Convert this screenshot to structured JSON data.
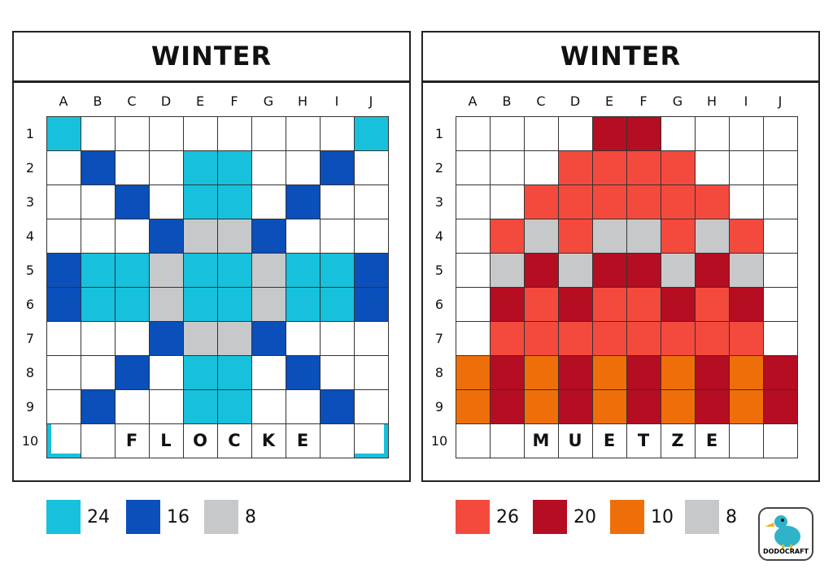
{
  "palette": {
    "W": "#ffffff",
    "L": "#17c1dc",
    "D": "#0a4fba",
    "G": "#c6c8ca",
    "R": "#f44a3e",
    "M": "#b50d22",
    "O": "#ee6f0a"
  },
  "panels": [
    {
      "title": "WINTER",
      "columns": [
        "A",
        "B",
        "C",
        "D",
        "E",
        "F",
        "G",
        "H",
        "I",
        "J"
      ],
      "rows": [
        "1",
        "2",
        "3",
        "4",
        "5",
        "6",
        "7",
        "8",
        "9",
        "10"
      ],
      "grid": [
        "LWWWWWWWWL",
        "WDWWLLWWDW",
        "WWDWLLWDWW",
        "WWWDGGDWWW",
        "DLLGLLGLLD",
        "DLLGLLGLLD",
        "WWWDGGDWWW",
        "WWDWLLWDWW",
        "WDWWLLWWDW",
        "lWWWWWWWWr"
      ],
      "word": [
        null,
        null,
        "F",
        "L",
        "O",
        "C",
        "K",
        "E",
        null,
        null
      ],
      "legend": [
        {
          "key": "L",
          "count": 24
        },
        {
          "key": "D",
          "count": 16
        },
        {
          "key": "G",
          "count": 8
        }
      ]
    },
    {
      "title": "WINTER",
      "columns": [
        "A",
        "B",
        "C",
        "D",
        "E",
        "F",
        "G",
        "H",
        "I",
        "J"
      ],
      "rows": [
        "1",
        "2",
        "3",
        "4",
        "5",
        "6",
        "7",
        "8",
        "9",
        "10"
      ],
      "grid": [
        "WWWWMMWWWW",
        "WWWRRRRWWW",
        "WWRRRRRRWW",
        "WRGRGGRGRW",
        "WGMGMMGMGW",
        "WMRMRRMRMW",
        "WRRRRRRRRW",
        "OMOMOMOMOM",
        "OMOMOMOMOM",
        "WWWWWWWWWW"
      ],
      "word": [
        null,
        null,
        "M",
        "U",
        "E",
        "T",
        "Z",
        "E",
        null,
        null
      ],
      "legend": [
        {
          "key": "R",
          "count": 26
        },
        {
          "key": "M",
          "count": 20
        },
        {
          "key": "O",
          "count": 10
        },
        {
          "key": "G",
          "count": 8
        }
      ]
    }
  ],
  "logo": "DODOCRAFT"
}
